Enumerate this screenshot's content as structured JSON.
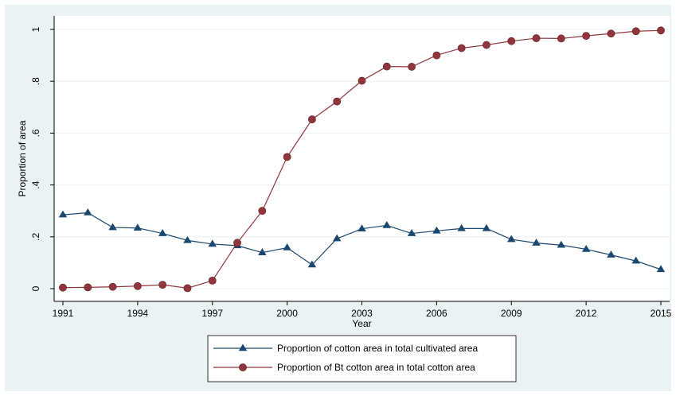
{
  "chart_data": {
    "type": "line",
    "title": "",
    "xlabel": "Year",
    "ylabel": "Proportion of area",
    "xlim": [
      1991,
      2015
    ],
    "ylim": [
      0,
      1
    ],
    "x_ticks": [
      1991,
      1994,
      1997,
      2000,
      2003,
      2006,
      2009,
      2012,
      2015
    ],
    "x_tick_labels": [
      "1991",
      "1994",
      "1997",
      "2000",
      "2003",
      "2006",
      "2009",
      "2012",
      "2015"
    ],
    "y_ticks": [
      0,
      0.2,
      0.4,
      0.6,
      0.8,
      1
    ],
    "y_tick_labels": [
      "0",
      ".2",
      ".4",
      ".6",
      ".8",
      "1"
    ],
    "grid": "horizontal",
    "legend_position": "bottom",
    "x": [
      1991,
      1992,
      1993,
      1994,
      1995,
      1996,
      1997,
      1998,
      1999,
      2000,
      2001,
      2002,
      2003,
      2004,
      2005,
      2006,
      2007,
      2008,
      2009,
      2010,
      2011,
      2012,
      2013,
      2014,
      2015
    ],
    "series": [
      {
        "name": "Proportion of cotton area in total cultivated area",
        "color": "#1a476f",
        "marker": "triangle",
        "values": [
          0.285,
          0.293,
          0.236,
          0.234,
          0.213,
          0.186,
          0.172,
          0.166,
          0.139,
          0.158,
          0.092,
          0.193,
          0.231,
          0.244,
          0.213,
          0.223,
          0.232,
          0.232,
          0.19,
          0.176,
          0.168,
          0.152,
          0.13,
          0.107,
          0.074
        ]
      },
      {
        "name": "Proportion of Bt cotton area in total cotton area",
        "color": "#90353b",
        "marker": "circle",
        "values": [
          0.004,
          0.005,
          0.007,
          0.01,
          0.015,
          0.002,
          0.031,
          0.177,
          0.3,
          0.508,
          0.653,
          0.722,
          0.802,
          0.857,
          0.856,
          0.9,
          0.928,
          0.94,
          0.955,
          0.966,
          0.965,
          0.975,
          0.984,
          0.993,
          0.996
        ]
      }
    ]
  }
}
